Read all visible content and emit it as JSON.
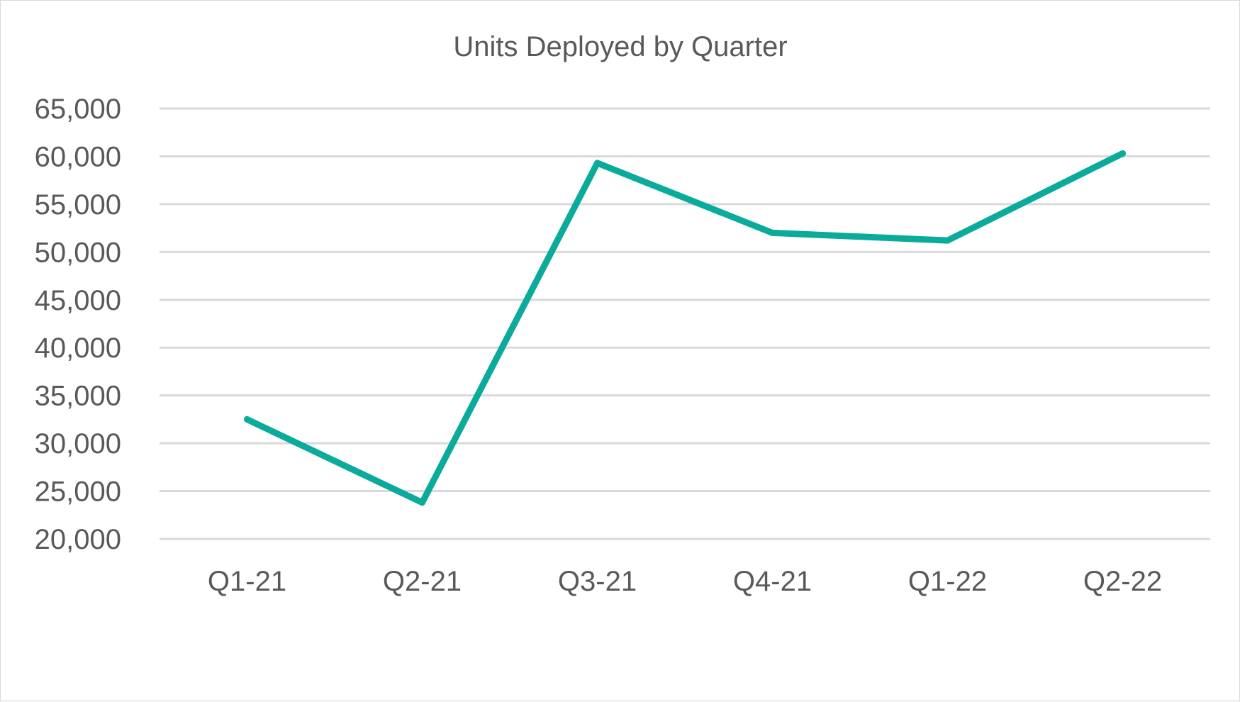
{
  "chart_data": {
    "type": "line",
    "title": "Units Deployed by Quarter",
    "xlabel": "",
    "ylabel": "",
    "categories": [
      "Q1-21",
      "Q2-21",
      "Q3-21",
      "Q4-21",
      "Q1-22",
      "Q2-22"
    ],
    "series": [
      {
        "values": [
          32500,
          23800,
          59300,
          52000,
          51200,
          60300
        ],
        "color": "#0aab9b"
      }
    ],
    "ylim": [
      20000,
      65000
    ],
    "yticks": [
      20000,
      25000,
      30000,
      35000,
      40000,
      45000,
      50000,
      55000,
      60000,
      65000
    ],
    "ytick_labels": [
      "20,000",
      "25,000",
      "30,000",
      "35,000",
      "40,000",
      "45,000",
      "50,000",
      "55,000",
      "60,000",
      "65,000"
    ],
    "grid": true,
    "legend": "none"
  }
}
